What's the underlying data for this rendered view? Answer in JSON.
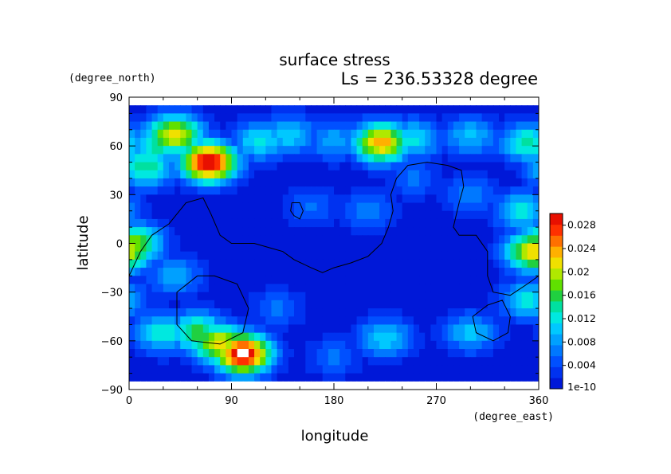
{
  "chart_data": {
    "type": "heatmap",
    "title": "surface stress",
    "subtitle": "Ls = 236.53328 degree",
    "xlabel": "longitude",
    "ylabel": "latitude",
    "xunit": "(degree_east)",
    "yunit": "(degree_north)",
    "xlim": [
      0,
      360
    ],
    "ylim": [
      -90,
      90
    ],
    "xticks": [
      "0",
      "90",
      "180",
      "270",
      "360"
    ],
    "yticks": [
      "−90",
      "−60",
      "−30",
      "0",
      "30",
      "60",
      "90"
    ],
    "colorbar": {
      "min": 0,
      "max": 0.03,
      "min_label": "1e-10",
      "ticks": [
        {
          "value": 0.004,
          "label": "0.004"
        },
        {
          "value": 0.008,
          "label": "0.008"
        },
        {
          "value": 0.012,
          "label": "0.012"
        },
        {
          "value": 0.016,
          "label": "0.016"
        },
        {
          "value": 0.02,
          "label": "0.02"
        },
        {
          "value": 0.024,
          "label": "0.024"
        },
        {
          "value": 0.028,
          "label": "0.028"
        }
      ],
      "colors": [
        "#0018d8",
        "#0032f0",
        "#0050ff",
        "#0078ff",
        "#00a0ff",
        "#00c8ff",
        "#00e8e0",
        "#00e0a0",
        "#20d040",
        "#60e000",
        "#b0e800",
        "#f0e000",
        "#ffb000",
        "#ff7000",
        "#ff3000",
        "#e81000"
      ]
    },
    "lat_bounds": [
      -85,
      85
    ],
    "background_value": 0.001,
    "features": [
      {
        "lon": 40,
        "lat": 67,
        "value": 0.022
      },
      {
        "lon": 70,
        "lat": 50,
        "value": 0.031
      },
      {
        "lon": 25,
        "lat": 60,
        "value": 0.014
      },
      {
        "lon": 15,
        "lat": 47,
        "value": 0.015
      },
      {
        "lon": 115,
        "lat": 63,
        "value": 0.012
      },
      {
        "lon": 140,
        "lat": 67,
        "value": 0.011
      },
      {
        "lon": 180,
        "lat": 63,
        "value": 0.009
      },
      {
        "lon": 222,
        "lat": 62,
        "value": 0.024
      },
      {
        "lon": 250,
        "lat": 64,
        "value": 0.012
      },
      {
        "lon": 300,
        "lat": 66,
        "value": 0.01
      },
      {
        "lon": 350,
        "lat": 62,
        "value": 0.014
      },
      {
        "lon": 5,
        "lat": 0,
        "value": 0.018
      },
      {
        "lon": 355,
        "lat": -5,
        "value": 0.022
      },
      {
        "lon": 345,
        "lat": 20,
        "value": 0.012
      },
      {
        "lon": 350,
        "lat": -35,
        "value": 0.012
      },
      {
        "lon": 60,
        "lat": -55,
        "value": 0.017
      },
      {
        "lon": 100,
        "lat": -68,
        "value": 0.031
      },
      {
        "lon": 80,
        "lat": -62,
        "value": 0.022
      },
      {
        "lon": 30,
        "lat": -55,
        "value": 0.013
      },
      {
        "lon": 225,
        "lat": -58,
        "value": 0.011
      },
      {
        "lon": 300,
        "lat": -55,
        "value": 0.01
      },
      {
        "lon": 40,
        "lat": -20,
        "value": 0.009
      },
      {
        "lon": 160,
        "lat": 23,
        "value": 0.006
      },
      {
        "lon": 210,
        "lat": 20,
        "value": 0.007
      },
      {
        "lon": 250,
        "lat": 40,
        "value": 0.006
      },
      {
        "lon": 300,
        "lat": 30,
        "value": 0.007
      },
      {
        "lon": 130,
        "lat": -40,
        "value": 0.006
      },
      {
        "lon": 180,
        "lat": -70,
        "value": 0.006
      }
    ],
    "contours": [
      [
        [
          0,
          -20
        ],
        [
          10,
          -5
        ],
        [
          20,
          5
        ],
        [
          35,
          12
        ],
        [
          50,
          25
        ],
        [
          65,
          28
        ],
        [
          72,
          18
        ],
        [
          80,
          5
        ],
        [
          90,
          0
        ],
        [
          110,
          0
        ],
        [
          125,
          -3
        ],
        [
          135,
          -5
        ],
        [
          145,
          -10
        ],
        [
          160,
          -15
        ],
        [
          170,
          -18
        ],
        [
          180,
          -15
        ],
        [
          195,
          -12
        ],
        [
          210,
          -8
        ],
        [
          222,
          0
        ],
        [
          228,
          10
        ],
        [
          232,
          20
        ],
        [
          230,
          30
        ],
        [
          235,
          40
        ],
        [
          245,
          48
        ],
        [
          262,
          50
        ],
        [
          280,
          48
        ],
        [
          292,
          45
        ],
        [
          294,
          35
        ],
        [
          290,
          25
        ],
        [
          285,
          10
        ],
        [
          290,
          5
        ],
        [
          305,
          5
        ],
        [
          315,
          -5
        ],
        [
          315,
          -20
        ],
        [
          320,
          -30
        ],
        [
          335,
          -32
        ],
        [
          350,
          -25
        ],
        [
          360,
          -20
        ]
      ],
      [
        [
          60,
          -20
        ],
        [
          75,
          -20
        ],
        [
          95,
          -25
        ],
        [
          105,
          -40
        ],
        [
          100,
          -55
        ],
        [
          80,
          -62
        ],
        [
          55,
          -60
        ],
        [
          42,
          -50
        ],
        [
          42,
          -30
        ],
        [
          60,
          -20
        ]
      ],
      [
        [
          143,
          25
        ],
        [
          150,
          25
        ],
        [
          153,
          20
        ],
        [
          150,
          15
        ],
        [
          145,
          17
        ],
        [
          142,
          20
        ],
        [
          143,
          25
        ]
      ],
      [
        [
          315,
          -38
        ],
        [
          328,
          -35
        ],
        [
          335,
          -45
        ],
        [
          333,
          -55
        ],
        [
          320,
          -60
        ],
        [
          305,
          -55
        ],
        [
          302,
          -45
        ],
        [
          315,
          -38
        ]
      ]
    ]
  }
}
